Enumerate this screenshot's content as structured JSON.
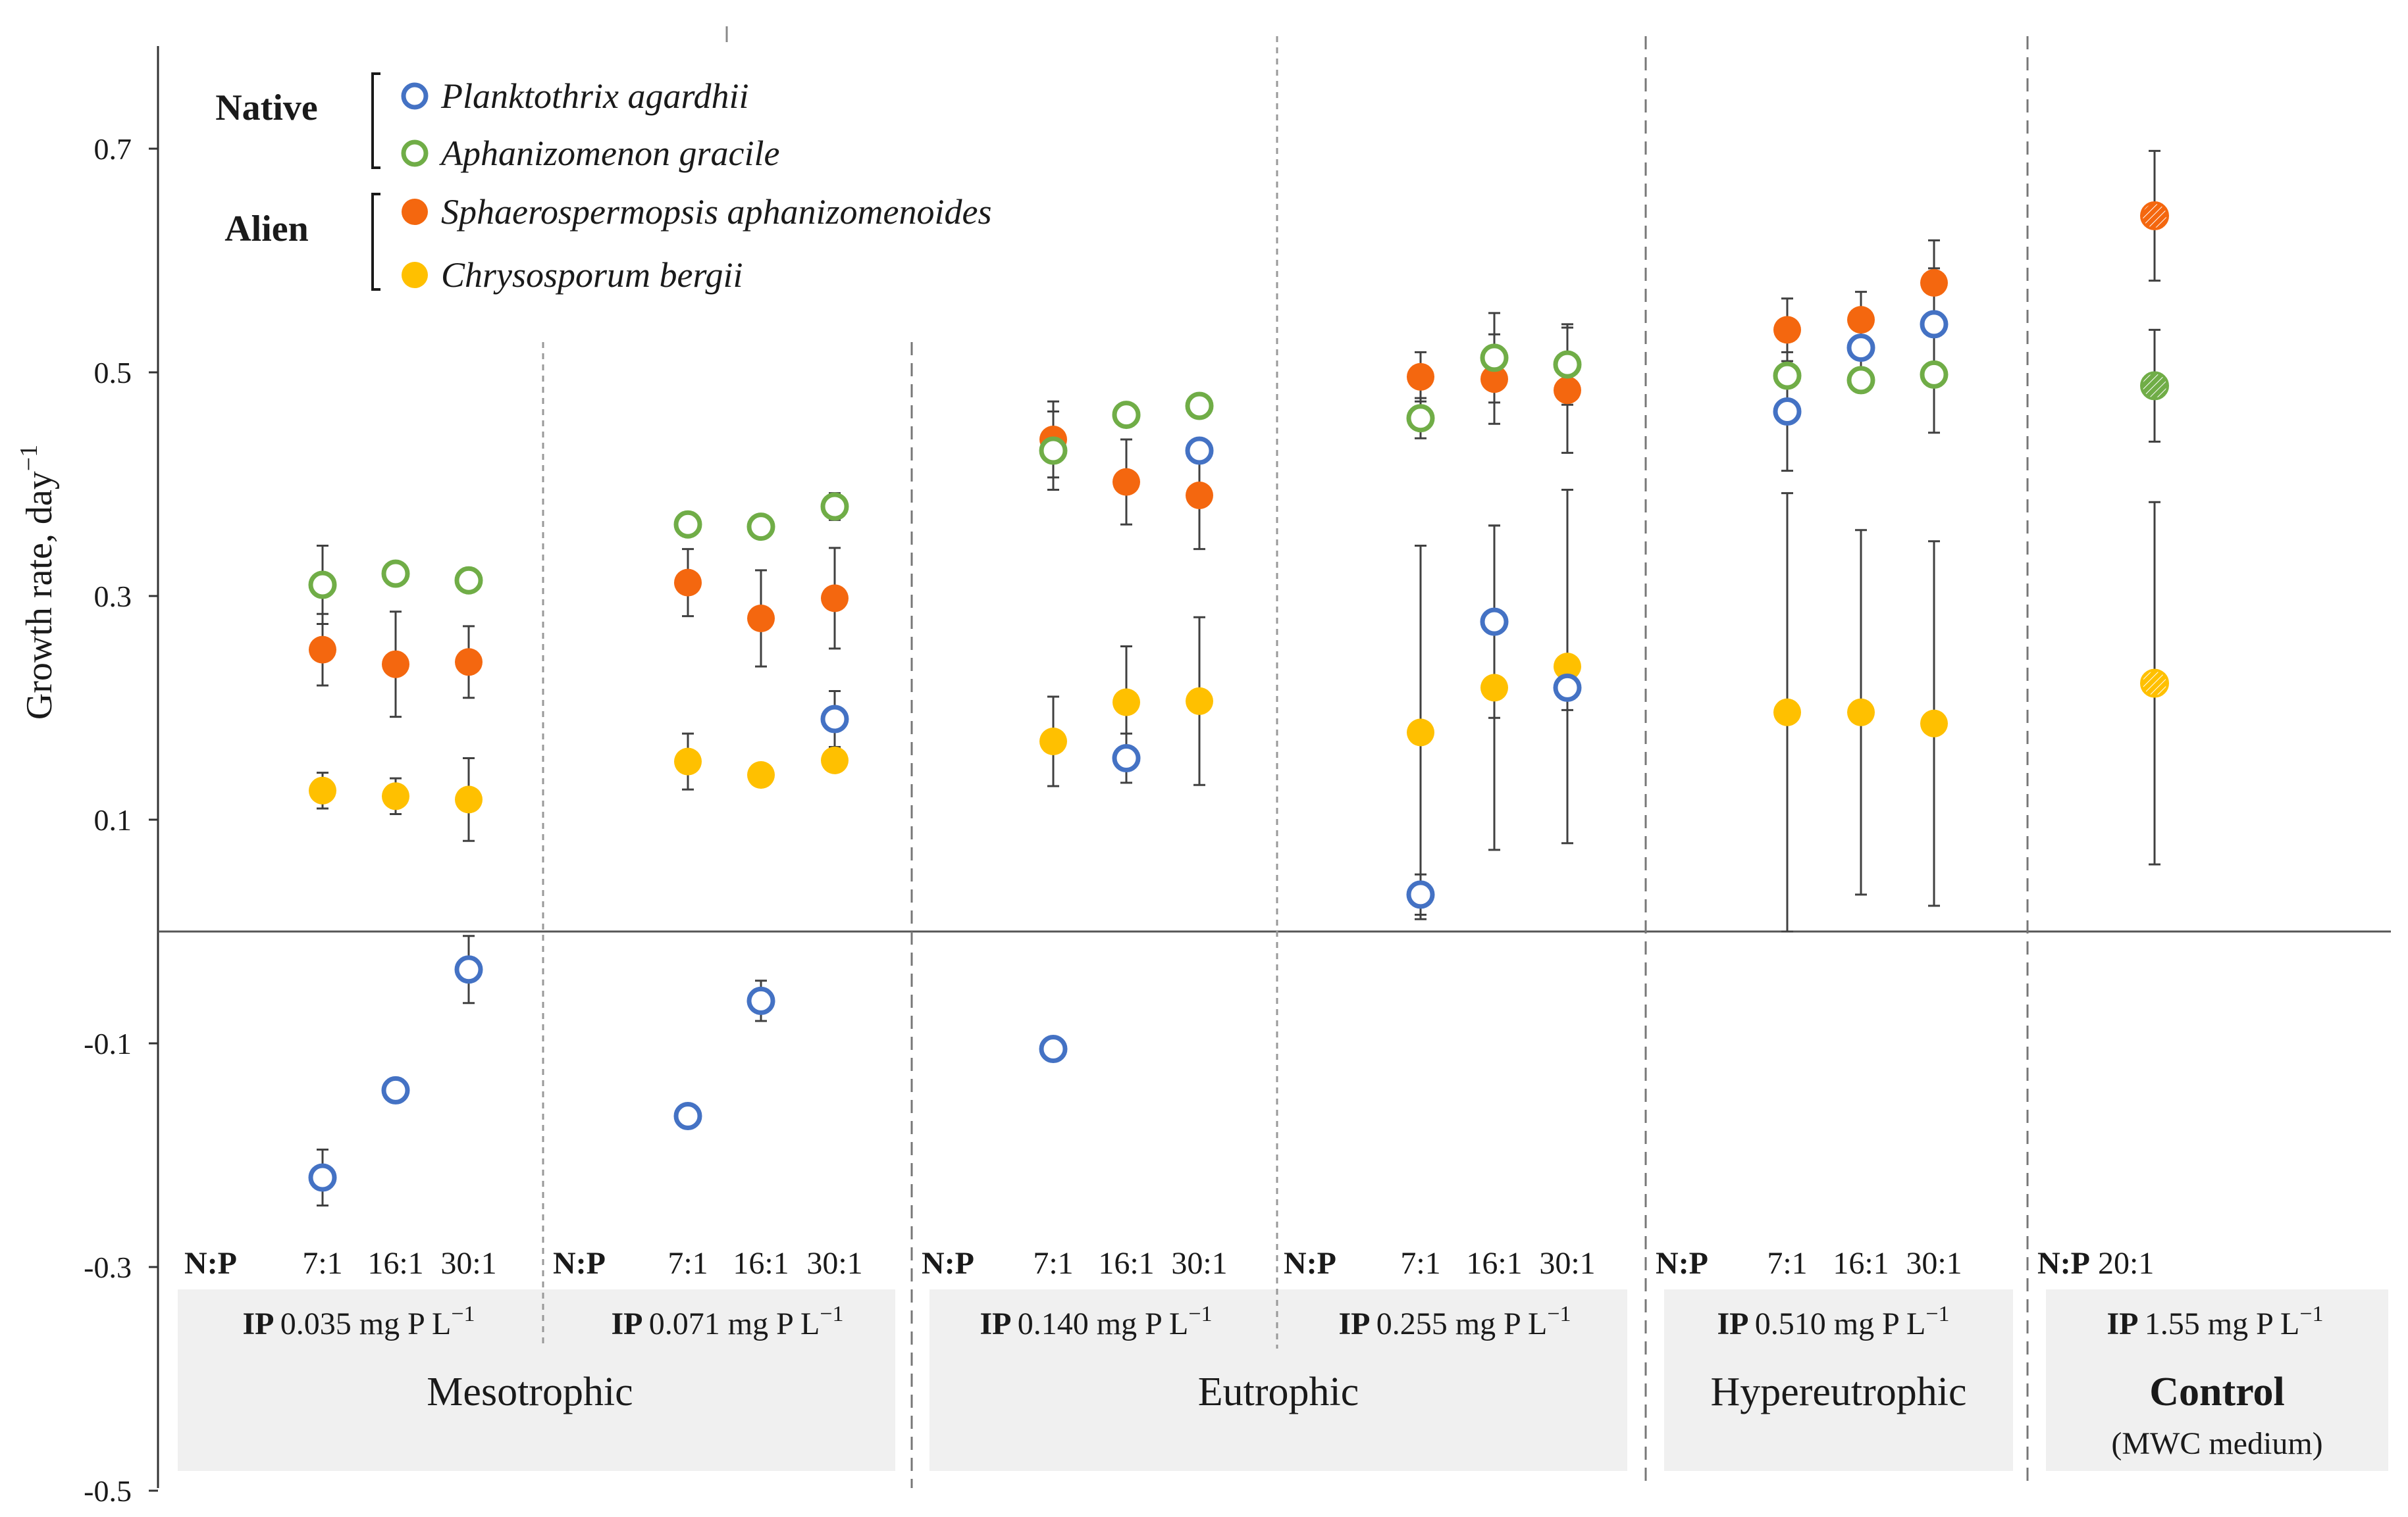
{
  "chart_data": {
    "type": "scatter",
    "ylabel": "Growth rate, day",
    "ylabel_sup": "−1",
    "ylim": [
      -0.5,
      0.8
    ],
    "yticks": [
      0.7,
      0.5,
      0.3,
      0.1,
      -0.1,
      -0.3,
      -0.5
    ],
    "ytick_labels": [
      "0.7",
      "0.5",
      "0.3",
      "0.1",
      "-0.1",
      "-0.3",
      "-0.5"
    ],
    "legend": {
      "groups": [
        {
          "label": "Native",
          "entries": [
            0,
            1
          ]
        },
        {
          "label": "Alien",
          "entries": [
            2,
            3
          ]
        }
      ]
    },
    "series": [
      {
        "name": "Planktothrix agardhii",
        "color": "#4472C4",
        "marker": "open",
        "values": [
          -0.22,
          -0.142,
          -0.034,
          -0.165,
          -0.062,
          0.19,
          -0.105,
          0.155,
          0.43,
          0.033,
          0.277,
          0.218,
          0.465,
          0.522,
          0.543
        ],
        "errors": [
          0.025,
          null,
          0.03,
          null,
          0.018,
          0.025,
          null,
          0.022,
          null,
          0.018,
          0.086,
          0.02,
          0.053,
          0.02,
          0.05
        ]
      },
      {
        "name": "Aphanizomenon gracile",
        "color": "#70AD47",
        "marker": "open",
        "values": [
          0.31,
          0.32,
          0.314,
          0.364,
          0.362,
          0.38,
          0.43,
          0.462,
          0.47,
          0.459,
          0.513,
          0.507,
          0.497,
          0.493,
          0.498,
          0.488
        ],
        "errors": [
          0.035,
          null,
          null,
          null,
          null,
          0.012,
          0.035,
          null,
          null,
          0.018,
          0.04,
          0.036,
          0.036,
          null,
          0.052,
          0.05
        ]
      },
      {
        "name": "Sphaerospermopsis aphanizomenoides",
        "color": "#F4670F",
        "marker": "filled",
        "values": [
          0.252,
          0.239,
          0.241,
          0.312,
          0.28,
          0.298,
          0.44,
          0.402,
          0.39,
          0.496,
          0.494,
          0.484,
          0.538,
          0.547,
          0.58,
          0.64
        ],
        "errors": [
          0.032,
          0.047,
          0.032,
          0.03,
          0.043,
          0.045,
          0.034,
          0.038,
          0.048,
          0.022,
          0.04,
          0.056,
          0.028,
          0.025,
          0.038,
          0.058
        ]
      },
      {
        "name": "Chrysosporum bergii",
        "color": "#FFC000",
        "marker": "filled",
        "values": [
          0.126,
          0.121,
          0.118,
          0.152,
          0.14,
          0.153,
          0.17,
          0.205,
          0.206,
          0.178,
          0.218,
          0.237,
          0.196,
          0.196,
          0.186,
          0.222
        ],
        "errors": [
          0.016,
          0.016,
          0.037,
          0.025,
          null,
          null,
          0.04,
          0.05,
          0.075,
          0.167,
          0.145,
          0.158,
          0.196,
          0.163,
          0.163,
          0.162
        ]
      }
    ],
    "np_groups": [
      {
        "np_label": "N:P",
        "ratios": [
          "7:1",
          "16:1",
          "30:1"
        ],
        "ip_label": "IP",
        "ip_value": "0.035 mg P L",
        "ip_sup": "−1"
      },
      {
        "np_label": "N:P",
        "ratios": [
          "7:1",
          "16:1",
          "30:1"
        ],
        "ip_label": "IP",
        "ip_value": "0.071 mg P L",
        "ip_sup": "−1"
      },
      {
        "np_label": "N:P",
        "ratios": [
          "7:1",
          "16:1",
          "30:1"
        ],
        "ip_label": "IP",
        "ip_value": "0.140 mg P L",
        "ip_sup": "−1"
      },
      {
        "np_label": "N:P",
        "ratios": [
          "7:1",
          "16:1",
          "30:1"
        ],
        "ip_label": "IP",
        "ip_value": "0.255 mg P L",
        "ip_sup": "−1"
      },
      {
        "np_label": "N:P",
        "ratios": [
          "7:1",
          "16:1",
          "30:1"
        ],
        "ip_label": "IP",
        "ip_value": "0.510 mg P L",
        "ip_sup": "−1"
      },
      {
        "np_label": "N:P",
        "ratios": [
          "20:1"
        ],
        "ip_label": "IP",
        "ip_value": "1.55 mg P L",
        "ip_sup": "−1"
      }
    ],
    "trophic_states": [
      "Mesotrophic",
      "Eutrophic",
      "Hypereutrophic",
      "Control"
    ],
    "control_note": "(MWC medium)"
  }
}
